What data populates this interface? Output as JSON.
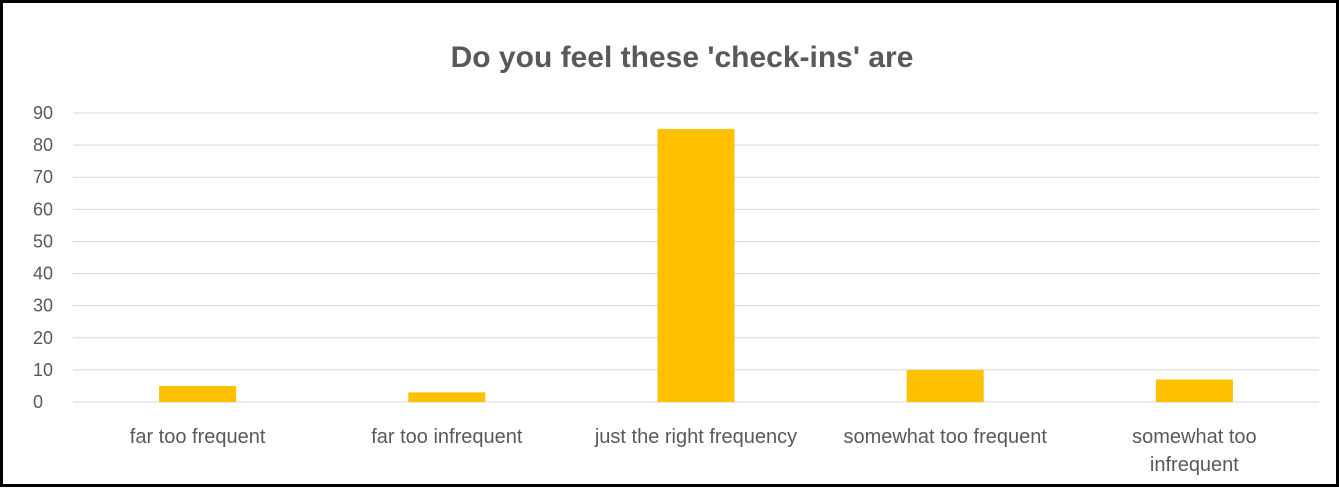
{
  "chart_data": {
    "type": "bar",
    "title": "Do you feel these 'check-ins' are",
    "categories": [
      "far too frequent",
      "far too infrequent",
      "just the right frequency",
      "somewhat too frequent",
      "somewhat too infrequent"
    ],
    "values": [
      5,
      3,
      85,
      10,
      7
    ],
    "xlabel": "",
    "ylabel": "",
    "ylim": [
      0,
      90
    ],
    "yticks": [
      0,
      10,
      20,
      30,
      40,
      50,
      60,
      70,
      80,
      90
    ],
    "grid": true,
    "legend": "none",
    "bar_color": "#FFC000",
    "gridline_color": "#D9D9D9",
    "text_color": "#595959"
  }
}
